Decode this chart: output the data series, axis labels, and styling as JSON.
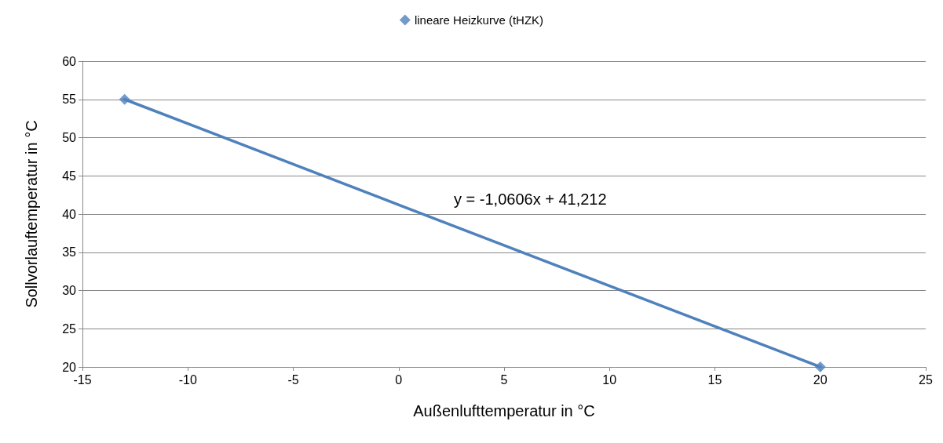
{
  "chart_data": {
    "type": "scatter",
    "xlabel": "Außenlufttemperatur in °C",
    "ylabel": "Sollvorlauftemperatur in °C",
    "annotations": [
      "y = -1,0606x + 41,212"
    ],
    "x": [
      -13,
      20
    ],
    "series": [
      {
        "name": "lineare Heizkurve (tHZK)",
        "color": "#4f81bd",
        "values": [
          55,
          20
        ]
      },
      {
        "type": "line",
        "color": "#4f81bd",
        "marker": "none",
        "x": [
          -13,
          20
        ],
        "values": [
          55,
          20
        ]
      }
    ],
    "xlim": [
      -15,
      25
    ],
    "xticks": [
      -15,
      -10,
      -5,
      0,
      5,
      10,
      15,
      20,
      25
    ],
    "ylim": [
      20,
      60
    ],
    "yticks": [
      20,
      25,
      30,
      35,
      40,
      45,
      50,
      55,
      60
    ],
    "grid": "y",
    "legend": "top",
    "marker": "diamond"
  }
}
